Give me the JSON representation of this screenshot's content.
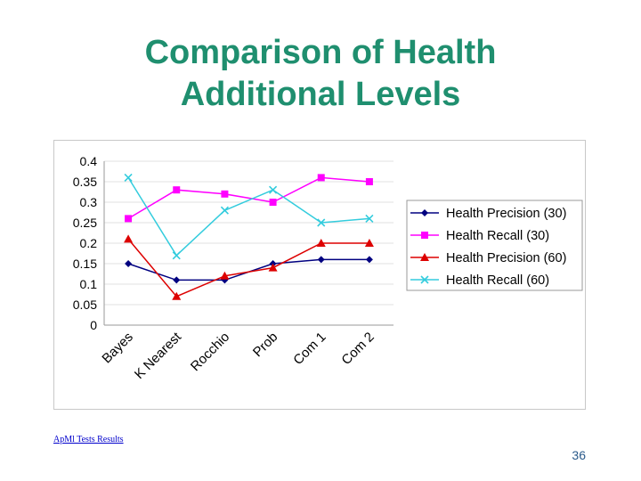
{
  "slide": {
    "title_line1": "Comparison of Health",
    "title_line2": "Additional Levels",
    "footer_link": "ApMl Tests Results",
    "page_number": "36"
  },
  "chart_data": {
    "type": "line",
    "categories": [
      "Bayes",
      "K Nearest",
      "Rocchio",
      "Prob",
      "Com 1",
      "Com 2"
    ],
    "ylim": [
      0,
      0.4
    ],
    "yticks": [
      "0",
      "0.05",
      "0.1",
      "0.15",
      "0.2",
      "0.25",
      "0.3",
      "0.35",
      "0.4"
    ],
    "legend_position": "right",
    "series": [
      {
        "name": "Health Precision (30)",
        "color": "#000080",
        "marker": "diamond",
        "values": [
          0.15,
          0.11,
          0.11,
          0.15,
          0.16,
          0.16
        ]
      },
      {
        "name": "Health Recall (30)",
        "color": "#ff00ff",
        "marker": "square",
        "values": [
          0.26,
          0.33,
          0.32,
          0.3,
          0.36,
          0.35
        ]
      },
      {
        "name": "Health Precision (60)",
        "color": "#dd0000",
        "marker": "triangle",
        "values": [
          0.21,
          0.07,
          0.12,
          0.14,
          0.2,
          0.2
        ]
      },
      {
        "name": "Health Recall (60)",
        "color": "#33ccdd",
        "marker": "x",
        "values": [
          0.36,
          0.17,
          0.28,
          0.33,
          0.25,
          0.26
        ]
      }
    ]
  }
}
